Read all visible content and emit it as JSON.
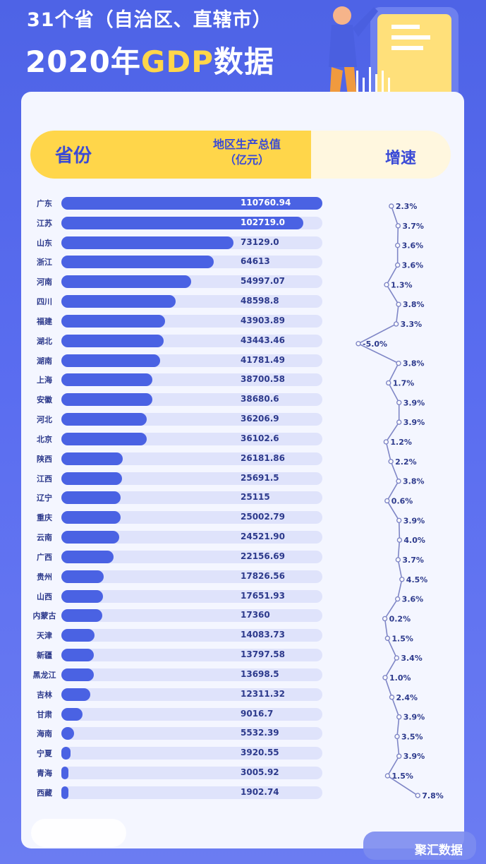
{
  "header": {
    "title_line1": "31个省（自治区、直辖市）",
    "title_year": "2020年",
    "title_gdp": "GDP",
    "title_suffix": "数据"
  },
  "table_header": {
    "province": "省份",
    "gdp_line1": "地区生产总值",
    "gdp_line2": "（亿元）",
    "growth": "增速"
  },
  "watermark": "聚汇数据",
  "colors": {
    "bar": "#4a62e3",
    "track": "#dfe3fb",
    "accent": "#ffd64a",
    "line": "#7f86c6"
  },
  "chart_data": {
    "type": "bar",
    "categories": [
      "广东",
      "江苏",
      "山东",
      "浙江",
      "河南",
      "四川",
      "福建",
      "湖北",
      "湖南",
      "上海",
      "安徽",
      "河北",
      "北京",
      "陕西",
      "江西",
      "辽宁",
      "重庆",
      "云南",
      "广西",
      "贵州",
      "山西",
      "内蒙古",
      "天津",
      "新疆",
      "黑龙江",
      "吉林",
      "甘肃",
      "海南",
      "宁夏",
      "青海",
      "西藏"
    ],
    "gdp_labels": [
      "110760.94",
      "102719.0",
      "73129.0",
      "64613",
      "54997.07",
      "48598.8",
      "43903.89",
      "43443.46",
      "41781.49",
      "38700.58",
      "38680.6",
      "36206.9",
      "36102.6",
      "26181.86",
      "25691.5",
      "25115",
      "25002.79",
      "24521.90",
      "22156.69",
      "17826.56",
      "17651.93",
      "17360",
      "14083.73",
      "13797.58",
      "13698.5",
      "12311.32",
      "9016.7",
      "5532.39",
      "3920.55",
      "3005.92",
      "1902.74"
    ],
    "series": [
      {
        "values": [
          110760.94,
          102719.0,
          73129.0,
          64613,
          54997.07,
          48598.8,
          43903.89,
          43443.46,
          41781.49,
          38700.58,
          38680.6,
          36206.9,
          36102.6,
          26181.86,
          25691.5,
          25115,
          25002.79,
          24521.9,
          22156.69,
          17826.56,
          17651.93,
          17360,
          14083.73,
          13797.58,
          13698.5,
          12311.32,
          9016.7,
          5532.39,
          3920.55,
          3005.92,
          1902.74
        ]
      },
      {
        "values": [
          2.3,
          3.7,
          3.6,
          3.6,
          1.3,
          3.8,
          3.3,
          -5.0,
          3.8,
          1.7,
          3.9,
          3.9,
          1.2,
          2.2,
          3.8,
          0.6,
          3.9,
          4.0,
          3.7,
          4.5,
          3.6,
          0.2,
          1.5,
          3.4,
          1.0,
          2.4,
          3.9,
          3.5,
          3.9,
          1.5,
          7.8
        ],
        "labels": [
          "2.3%",
          "3.7%",
          "3.6%",
          "3.6%",
          "1.3%",
          "3.8%",
          "3.3%",
          "-5.0%",
          "3.8%",
          "1.7%",
          "3.9%",
          "3.9%",
          "1.2%",
          "2.2%",
          "3.8%",
          "0.6%",
          "3.9%",
          "4.0%",
          "3.7%",
          "4.5%",
          "3.6%",
          "0.2%",
          "1.5%",
          "3.4%",
          "1.0%",
          "2.4%",
          "3.9%",
          "3.5%",
          "3.9%",
          "1.5%",
          "7.8%"
        ]
      }
    ],
    "xlim": [
      0,
      110760.94
    ],
    "growth_range": [
      -5.0,
      7.8
    ]
  }
}
